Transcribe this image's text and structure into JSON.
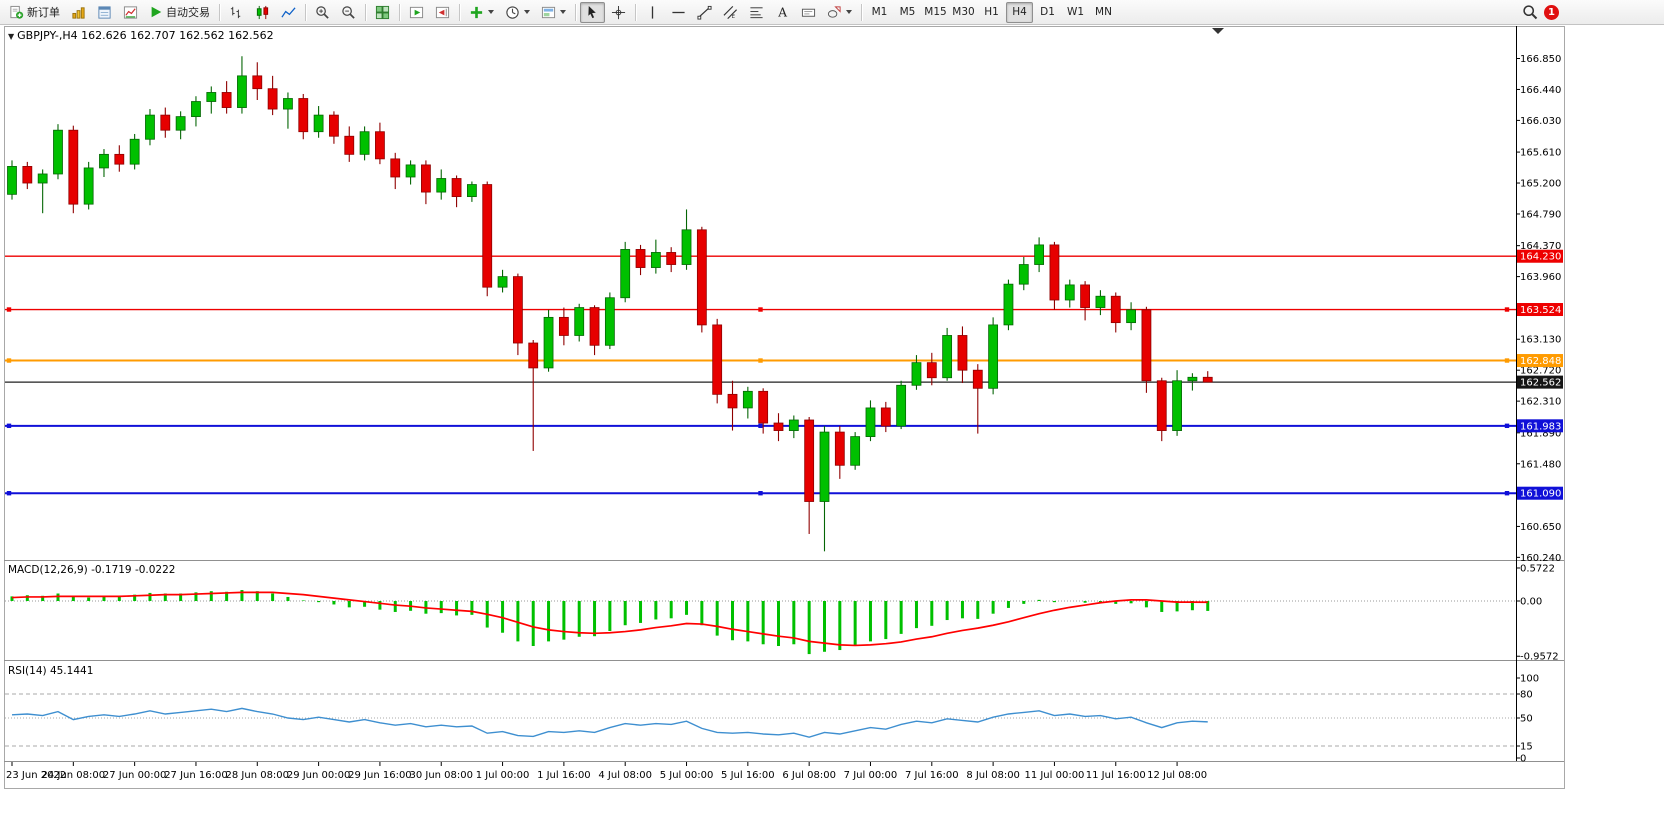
{
  "toolbar": {
    "new_order_label": "新订单",
    "autotrade_label": "自动交易",
    "timeframes": [
      "M1",
      "M5",
      "M15",
      "M30",
      "H1",
      "H4",
      "D1",
      "W1",
      "MN"
    ],
    "active_timeframe": "H4",
    "notification_count": "1"
  },
  "chart": {
    "title": "GBPJPY-,H4 162.626 162.707 162.562 162.562",
    "symbol": "GBPJPY-",
    "timeframe": "H4",
    "open": "162.626",
    "high": "162.707",
    "low": "162.562",
    "close": "162.562"
  },
  "indicators": {
    "macd_label": "MACD(12,26,9) -0.1719 -0.0222",
    "rsi_label": "RSI(14) 45.1441"
  },
  "colors": {
    "up": "#00c000",
    "down": "#e60000",
    "up_stroke": "#056605",
    "down_stroke": "#8f0000",
    "macd_hist": "#00c000",
    "macd_signal": "#ff0000",
    "rsi": "#3e8fd0",
    "badge_red": "#ee0000",
    "badge_orange": "#ff9b00",
    "badge_black": "#151515",
    "badge_blue": "#1010d8"
  },
  "price_axis": {
    "labels": [
      "166.850",
      "166.440",
      "166.030",
      "165.610",
      "165.200",
      "164.790",
      "164.370",
      "163.960",
      "163.540",
      "163.130",
      "162.720",
      "162.310",
      "161.890",
      "161.480",
      "161.070",
      "160.650",
      "160.240"
    ],
    "badges": [
      {
        "text": "164.230",
        "color": "#ee0000"
      },
      {
        "text": "163.524",
        "color": "#ee0000"
      },
      {
        "text": "162.848",
        "color": "#ff9b00"
      },
      {
        "text": "162.562",
        "color": "#151515"
      },
      {
        "text": "161.983",
        "color": "#1010d8"
      },
      {
        "text": "161.090",
        "color": "#1010d8"
      }
    ]
  },
  "time_axis": {
    "labels": [
      {
        "text": "23 Jun 2022",
        "i": 0
      },
      {
        "text": "24 Jun 08:00",
        "i": 4
      },
      {
        "text": "27 Jun 00:00",
        "i": 8
      },
      {
        "text": "27 Jun 16:00",
        "i": 12
      },
      {
        "text": "28 Jun 08:00",
        "i": 16
      },
      {
        "text": "29 Jun 00:00",
        "i": 20
      },
      {
        "text": "29 Jun 16:00",
        "i": 24
      },
      {
        "text": "30 Jun 08:00",
        "i": 28
      },
      {
        "text": "1 Jul 00:00",
        "i": 32
      },
      {
        "text": "1 Jul 16:00",
        "i": 36
      },
      {
        "text": "4 Jul 08:00",
        "i": 40
      },
      {
        "text": "5 Jul 00:00",
        "i": 44
      },
      {
        "text": "5 Jul 16:00",
        "i": 48
      },
      {
        "text": "6 Jul 08:00",
        "i": 52
      },
      {
        "text": "7 Jul 00:00",
        "i": 56
      },
      {
        "text": "7 Jul 16:00",
        "i": 60
      },
      {
        "text": "8 Jul 08:00",
        "i": 64
      },
      {
        "text": "11 Jul 00:00",
        "i": 68
      },
      {
        "text": "11 Jul 16:00",
        "i": 72
      },
      {
        "text": "12 Jul 08:00",
        "i": 76
      }
    ]
  },
  "chart_data": [
    {
      "type": "candlestick",
      "title": "GBPJPY-,H4",
      "ylim": [
        160.2,
        167.28
      ],
      "times": [
        "23.06 16:00",
        "23.06 20:00",
        "24.06 00:00",
        "24.06 04:00",
        "24.06 08:00",
        "24.06 12:00",
        "24.06 16:00",
        "24.06 20:00",
        "27.06 00:00",
        "27.06 04:00",
        "27.06 08:00",
        "27.06 12:00",
        "27.06 16:00",
        "27.06 20:00",
        "28.06 00:00",
        "28.06 04:00",
        "28.06 08:00",
        "28.06 12:00",
        "28.06 16:00",
        "28.06 20:00",
        "29.06 00:00",
        "29.06 04:00",
        "29.06 08:00",
        "29.06 12:00",
        "29.06 16:00",
        "29.06 20:00",
        "30.06 00:00",
        "30.06 04:00",
        "30.06 08:00",
        "30.06 12:00",
        "30.06 16:00",
        "30.06 20:00",
        "01.07 00:00",
        "01.07 04:00",
        "01.07 08:00",
        "01.07 12:00",
        "01.07 16:00",
        "01.07 20:00",
        "04.07 00:00",
        "04.07 04:00",
        "04.07 08:00",
        "04.07 12:00",
        "04.07 16:00",
        "04.07 20:00",
        "05.07 00:00",
        "05.07 04:00",
        "05.07 08:00",
        "05.07 12:00",
        "05.07 16:00",
        "05.07 20:00",
        "06.07 00:00",
        "06.07 04:00",
        "06.07 08:00",
        "06.07 12:00",
        "06.07 16:00",
        "06.07 20:00",
        "07.07 00:00",
        "07.07 04:00",
        "07.07 08:00",
        "07.07 12:00",
        "07.07 16:00",
        "07.07 20:00",
        "08.07 00:00",
        "08.07 04:00",
        "08.07 08:00",
        "08.07 12:00",
        "08.07 16:00",
        "08.07 20:00",
        "11.07 00:00",
        "11.07 04:00",
        "11.07 08:00",
        "11.07 12:00",
        "11.07 16:00",
        "11.07 20:00",
        "12.07 00:00",
        "12.07 04:00",
        "12.07 08:00",
        "12.07 12:00",
        "12.07 16:00"
      ],
      "open": [
        165.05,
        165.42,
        165.2,
        165.32,
        165.9,
        164.92,
        165.4,
        165.58,
        165.45,
        165.78,
        166.1,
        165.9,
        166.08,
        166.28,
        166.4,
        166.2,
        166.62,
        166.45,
        166.18,
        166.32,
        165.88,
        166.1,
        165.82,
        165.58,
        165.88,
        165.52,
        165.28,
        165.44,
        165.08,
        165.26,
        165.02,
        165.18,
        163.82,
        163.96,
        163.08,
        162.75,
        163.42,
        163.18,
        163.55,
        163.05,
        163.68,
        164.32,
        164.08,
        164.28,
        164.12,
        164.58,
        163.32,
        162.4,
        162.22,
        162.44,
        162.02,
        161.92,
        162.06,
        160.98,
        161.9,
        161.46,
        161.84,
        162.22,
        161.98,
        162.52,
        162.82,
        162.62,
        163.18,
        162.72,
        162.48,
        163.32,
        163.86,
        164.12,
        164.38,
        163.65,
        163.85,
        163.55,
        163.7,
        163.35,
        163.52,
        162.58,
        161.92,
        162.58,
        162.626
      ],
      "high": [
        165.5,
        165.48,
        165.38,
        165.98,
        165.96,
        165.48,
        165.65,
        165.7,
        165.85,
        166.18,
        166.2,
        166.15,
        166.35,
        166.48,
        166.55,
        166.88,
        166.8,
        166.62,
        166.4,
        166.38,
        166.22,
        166.15,
        165.95,
        165.95,
        166.0,
        165.6,
        165.5,
        165.5,
        165.38,
        165.3,
        165.22,
        165.22,
        164.05,
        164.0,
        163.12,
        163.52,
        163.55,
        163.6,
        163.58,
        163.75,
        164.42,
        164.38,
        164.45,
        164.35,
        164.85,
        164.62,
        163.4,
        162.58,
        162.5,
        162.48,
        162.15,
        162.12,
        162.1,
        161.98,
        161.98,
        161.9,
        162.32,
        162.3,
        162.58,
        162.92,
        162.95,
        163.28,
        163.3,
        162.8,
        163.42,
        163.92,
        164.22,
        164.48,
        164.42,
        163.92,
        163.9,
        163.78,
        163.75,
        163.62,
        163.56,
        162.62,
        162.72,
        162.68,
        162.707
      ],
      "low": [
        164.98,
        165.12,
        164.8,
        165.25,
        164.8,
        164.85,
        165.28,
        165.35,
        165.38,
        165.7,
        165.8,
        165.78,
        165.95,
        166.12,
        166.12,
        166.12,
        166.3,
        166.1,
        165.92,
        165.78,
        165.8,
        165.72,
        165.48,
        165.5,
        165.45,
        165.12,
        165.18,
        164.92,
        164.98,
        164.88,
        164.95,
        163.7,
        163.75,
        162.92,
        161.65,
        162.7,
        163.05,
        163.1,
        162.92,
        163.0,
        163.62,
        163.98,
        164.0,
        164.02,
        164.05,
        163.22,
        162.28,
        161.92,
        162.08,
        161.88,
        161.78,
        161.82,
        160.55,
        160.32,
        161.28,
        161.4,
        161.78,
        161.9,
        161.94,
        162.46,
        162.52,
        162.58,
        162.55,
        161.88,
        162.4,
        163.25,
        163.78,
        164.02,
        163.52,
        163.55,
        163.38,
        163.45,
        163.22,
        163.25,
        162.42,
        161.78,
        161.85,
        162.45,
        162.562
      ],
      "close": [
        165.42,
        165.2,
        165.32,
        165.9,
        164.92,
        165.4,
        165.58,
        165.45,
        165.78,
        166.1,
        165.9,
        166.08,
        166.28,
        166.4,
        166.2,
        166.62,
        166.45,
        166.18,
        166.32,
        165.88,
        166.1,
        165.82,
        165.58,
        165.88,
        165.52,
        165.28,
        165.44,
        165.08,
        165.26,
        165.02,
        165.18,
        163.82,
        163.96,
        163.08,
        162.75,
        163.42,
        163.18,
        163.55,
        163.05,
        163.68,
        164.32,
        164.08,
        164.28,
        164.12,
        164.58,
        163.32,
        162.4,
        162.22,
        162.44,
        162.02,
        161.92,
        162.06,
        160.98,
        161.9,
        161.46,
        161.84,
        162.22,
        161.98,
        162.52,
        162.82,
        162.62,
        163.18,
        162.72,
        162.48,
        163.32,
        163.86,
        164.12,
        164.38,
        163.65,
        163.85,
        163.55,
        163.7,
        163.35,
        163.52,
        162.58,
        161.92,
        162.58,
        162.626,
        162.562
      ],
      "horizontal_lines": [
        {
          "price": 164.23,
          "color": "#ee0000",
          "thickness": 1.4,
          "selected": false
        },
        {
          "price": 163.524,
          "color": "#ee0000",
          "thickness": 1.4,
          "selected": true
        },
        {
          "price": 162.848,
          "color": "#ff9b00",
          "thickness": 2,
          "selected": true
        },
        {
          "price": 162.562,
          "color": "#202020",
          "thickness": 1.2,
          "selected": false
        },
        {
          "price": 161.983,
          "color": "#1010d8",
          "thickness": 2,
          "selected": true
        },
        {
          "price": 161.09,
          "color": "#1010d8",
          "thickness": 2,
          "selected": true
        }
      ]
    },
    {
      "type": "macd",
      "name": "MACD(12,26,9)",
      "values_label": "-0.1719 -0.0222",
      "ylim": [
        -0.9572,
        0.5722
      ],
      "histogram": [
        0.08,
        0.1,
        0.09,
        0.13,
        0.07,
        0.06,
        0.08,
        0.09,
        0.11,
        0.14,
        0.13,
        0.13,
        0.15,
        0.17,
        0.16,
        0.19,
        0.17,
        0.13,
        0.07,
        0.01,
        -0.02,
        -0.06,
        -0.11,
        -0.1,
        -0.15,
        -0.19,
        -0.17,
        -0.22,
        -0.21,
        -0.25,
        -0.24,
        -0.46,
        -0.55,
        -0.7,
        -0.78,
        -0.7,
        -0.67,
        -0.62,
        -0.61,
        -0.52,
        -0.42,
        -0.38,
        -0.32,
        -0.3,
        -0.24,
        -0.42,
        -0.6,
        -0.68,
        -0.7,
        -0.75,
        -0.78,
        -0.75,
        -0.92,
        -0.88,
        -0.85,
        -0.78,
        -0.7,
        -0.66,
        -0.57,
        -0.47,
        -0.43,
        -0.33,
        -0.3,
        -0.31,
        -0.22,
        -0.12,
        -0.05,
        0.02,
        -0.02,
        0.0,
        -0.03,
        -0.02,
        -0.05,
        -0.04,
        -0.11,
        -0.19,
        -0.18,
        -0.16,
        -0.1719
      ],
      "signal": [
        0.06,
        0.07,
        0.07,
        0.08,
        0.08,
        0.08,
        0.08,
        0.08,
        0.09,
        0.1,
        0.11,
        0.11,
        0.12,
        0.13,
        0.14,
        0.15,
        0.15,
        0.15,
        0.13,
        0.11,
        0.08,
        0.05,
        0.02,
        -0.01,
        -0.04,
        -0.07,
        -0.09,
        -0.12,
        -0.14,
        -0.16,
        -0.18,
        -0.23,
        -0.29,
        -0.37,
        -0.45,
        -0.5,
        -0.53,
        -0.55,
        -0.56,
        -0.55,
        -0.53,
        -0.5,
        -0.46,
        -0.43,
        -0.39,
        -0.4,
        -0.44,
        -0.49,
        -0.53,
        -0.57,
        -0.61,
        -0.64,
        -0.7,
        -0.73,
        -0.76,
        -0.77,
        -0.76,
        -0.74,
        -0.71,
        -0.66,
        -0.62,
        -0.56,
        -0.51,
        -0.47,
        -0.42,
        -0.36,
        -0.29,
        -0.22,
        -0.16,
        -0.11,
        -0.07,
        -0.03,
        0.0,
        0.02,
        0.02,
        0.0,
        -0.02,
        -0.02,
        -0.0222
      ],
      "axis_labels": [
        {
          "text": "0.5722",
          "v": 0.5722
        },
        {
          "text": "0.00",
          "v": 0
        },
        {
          "text": "-0.9572",
          "v": -0.9572
        }
      ]
    },
    {
      "type": "line",
      "name": "RSI(14)",
      "current": 45.1441,
      "ylim": [
        0,
        100
      ],
      "levels_dashed": [
        80,
        15
      ],
      "levels_dotted": [
        50
      ],
      "values": [
        54,
        55,
        53,
        58,
        48,
        52,
        54,
        52,
        55,
        59,
        55,
        57,
        59,
        61,
        58,
        62,
        58,
        55,
        50,
        48,
        51,
        48,
        45,
        48,
        44,
        41,
        43,
        39,
        41,
        39,
        40,
        31,
        33,
        28,
        27,
        33,
        32,
        34,
        32,
        38,
        43,
        41,
        43,
        42,
        46,
        37,
        32,
        31,
        32,
        30,
        29,
        31,
        26,
        32,
        30,
        34,
        38,
        36,
        42,
        46,
        44,
        49,
        47,
        45,
        51,
        55,
        57,
        59,
        53,
        55,
        52,
        53,
        49,
        51,
        44,
        38,
        44,
        46,
        45.1441
      ],
      "axis_labels": [
        {
          "text": "100",
          "v": 100
        },
        {
          "text": "80",
          "v": 80
        },
        {
          "text": "50",
          "v": 50
        },
        {
          "text": "15",
          "v": 15
        },
        {
          "text": "0",
          "v": 0
        }
      ]
    }
  ]
}
